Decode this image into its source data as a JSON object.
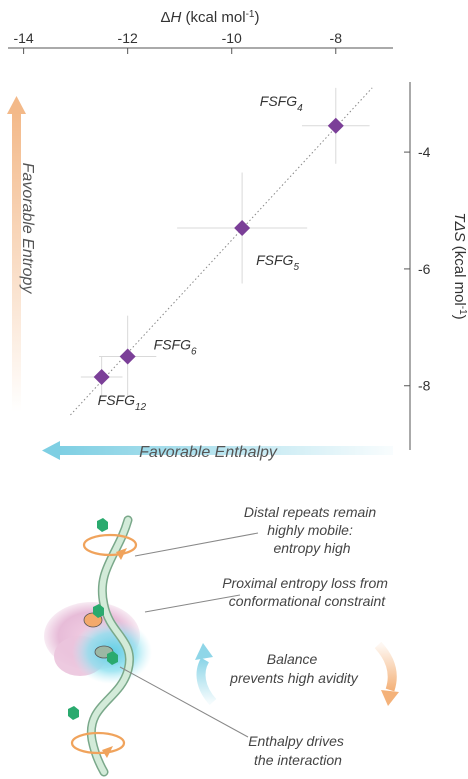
{
  "chart_data": {
    "type": "scatter",
    "title": "",
    "x_axis": {
      "label_prefix": "Δ",
      "label_var": "H",
      "label_unit": " (kcal mol",
      "label_sup": "-1",
      "label_close": ")",
      "range": [
        -14.3,
        -6.9
      ],
      "ticks": [
        {
          "value": -14,
          "label": "-14"
        },
        {
          "value": -12,
          "label": "-12"
        },
        {
          "value": -10,
          "label": "-10"
        },
        {
          "value": -8,
          "label": "-8"
        }
      ],
      "position": "top"
    },
    "y_axis": {
      "label_var": "TΔS",
      "label_unit": " (kcal mol",
      "label_sup": "-1",
      "label_close": ")",
      "range": [
        -9.1,
        -2.8
      ],
      "ticks": [
        {
          "value": -4,
          "label": "-4"
        },
        {
          "value": -6,
          "label": "-6"
        },
        {
          "value": -8,
          "label": "-8"
        }
      ],
      "position": "right"
    },
    "grid": false,
    "fit_line": {
      "x": [
        -13.1,
        -7.3
      ],
      "y": [
        -8.5,
        -2.9
      ],
      "style": "dotted"
    },
    "points": [
      {
        "id": "fsfg4",
        "base": "FSFG",
        "sub": "4",
        "x": -8.0,
        "y": -3.55,
        "xerr": 0.65,
        "yerr": 0.65,
        "label_pos": "upper-left"
      },
      {
        "id": "fsfg5",
        "base": "FSFG",
        "sub": "5",
        "x": -9.8,
        "y": -5.3,
        "xerr": 1.25,
        "yerr": 0.95,
        "label_pos": "lower-right"
      },
      {
        "id": "fsfg6",
        "base": "FSFG",
        "sub": "6",
        "x": -12.0,
        "y": -7.5,
        "xerr": 0.55,
        "yerr": 0.7,
        "label_pos": "upper-right"
      },
      {
        "id": "fsfg12",
        "base": "FSFG",
        "sub": "12",
        "x": -12.5,
        "y": -7.85,
        "xerr": 0.4,
        "yerr": 0.35,
        "label_pos": "below"
      }
    ],
    "marker_color": "#7b3f98"
  },
  "annotations": {
    "favorable_entropy": "Favorable Entropy",
    "favorable_enthalpy": "Favorable Enthalpy"
  },
  "notes": {
    "distal": [
      "Distal repeats remain",
      "highly mobile:",
      "entropy high"
    ],
    "proximal": [
      "Proximal entropy loss from",
      "conformational constraint"
    ],
    "balance": [
      "Balance",
      "prevents high avidity"
    ],
    "enthalpy": [
      "Enthalpy drives",
      "the interaction"
    ]
  },
  "colors": {
    "entropy_arrow": "#f3b989",
    "enthalpy_arrow": "#7ecfe3",
    "marker": "#7b3f98",
    "strand": "#bfe0c8",
    "strand_edge": "#7aa88a",
    "bead": "#2aaa6e",
    "rotation_arrow": "#f0a35c",
    "protein_pink": "#e9bfd9",
    "protein_cyan": "#6ed3e8",
    "balance_blue": "#8fd6e8",
    "balance_orange": "#f4b27a"
  }
}
